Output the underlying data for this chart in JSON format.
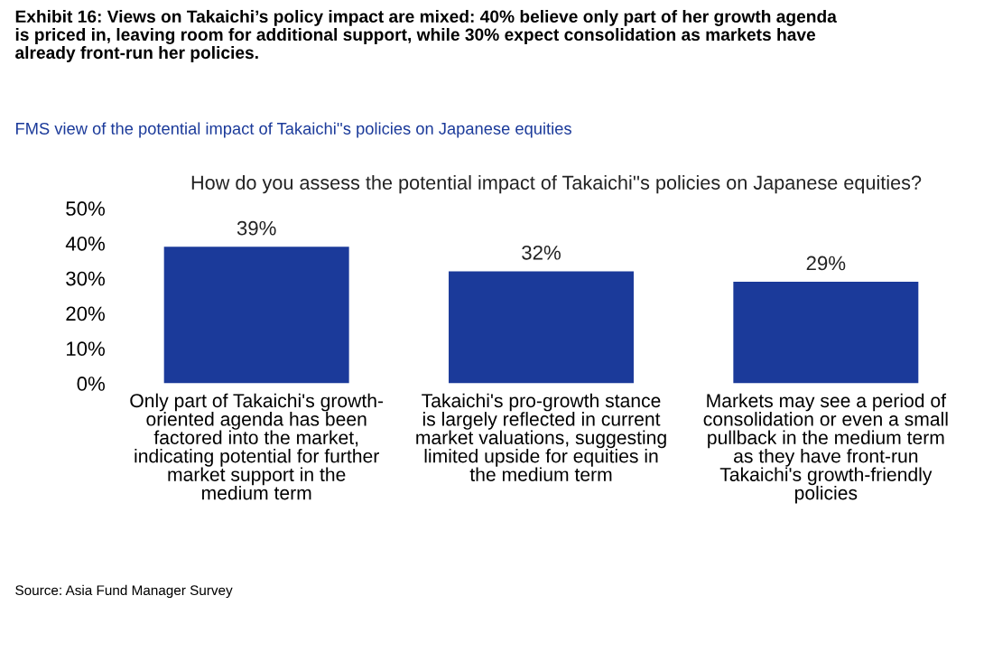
{
  "chart_data": {
    "type": "bar",
    "title": "Exhibit 16: Views on Takaichi’s policy impact are mixed: 40% believe only part of her growth agenda\nis priced in, leaving room for additional support, while 30% expect consolidation as markets have\nalready front-run her policies.",
    "subtitle": "FMS view of the potential impact of Takaichi''s policies on Japanese equities",
    "annotations": [
      "How do you assess the potential impact of Takaichi''s policies on Japanese equities?",
      "Source: Asia Fund Manager Survey"
    ],
    "categories": [
      "Only part of Takaichi's growth-\noriented agenda has been\nfactored into the market,\nindicating potential for further\nmarket support in the\nmedium term",
      "Takaichi's pro-growth stance\nis largely reflected in current\nmarket valuations, suggesting\nlimited upside for equities in\nthe medium term",
      "Markets may see a period of\nconsolidation or even a small\npullback in the medium term\nas they have front-run\nTakaichi's growth-friendly\npolicies"
    ],
    "values": [
      39,
      32,
      29
    ],
    "color": "#1b3a9a",
    "value_labels": [
      "39%",
      "32%",
      "29%"
    ],
    "ylim": [
      0,
      50
    ],
    "yticks": [
      {
        "value": 0,
        "label": "0%"
      },
      {
        "value": 10,
        "label": "10%"
      },
      {
        "value": 20,
        "label": "20%"
      },
      {
        "value": 30,
        "label": "30%"
      },
      {
        "value": 40,
        "label": "40%"
      },
      {
        "value": 50,
        "label": "50%"
      }
    ],
    "grid": false,
    "legend": false
  }
}
